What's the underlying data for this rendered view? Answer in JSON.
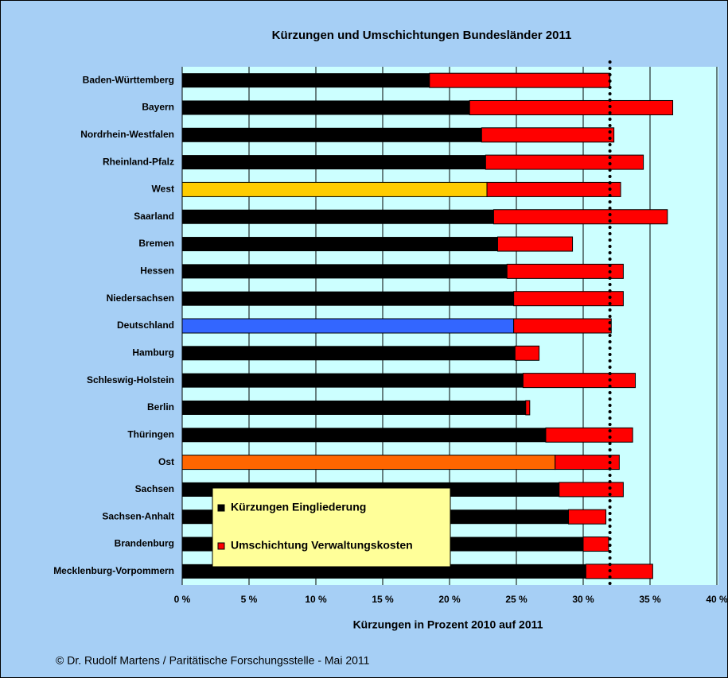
{
  "chart_data": {
    "type": "stacked_barh",
    "title": "Kürzungen und Umschichtungen Bundesländer 2011",
    "xlabel": "Kürzungen in Prozent 2010 auf 2011",
    "footer": "© Dr. Rudolf Martens / Paritätische Forschungsstelle - Mai 2011",
    "categories": [
      "Baden-Württemberg",
      "Bayern",
      "Nordrhein-Westfalen",
      "Rheinland-Pfalz",
      "West",
      "Saarland",
      "Bremen",
      "Hessen",
      "Niedersachsen",
      "Deutschland",
      "Hamburg",
      "Schleswig-Holstein",
      "Berlin",
      "Thüringen",
      "Ost",
      "Sachsen",
      "Sachsen-Anhalt",
      "Brandenburg",
      "Mecklenburg-Vorpommern"
    ],
    "series": [
      {
        "name": "Kürzungen Eingliederung",
        "color": "#000000",
        "colors": [
          "#000000",
          "#000000",
          "#000000",
          "#000000",
          "#ffcc00",
          "#000000",
          "#000000",
          "#000000",
          "#000000",
          "#3366ff",
          "#000000",
          "#000000",
          "#000000",
          "#000000",
          "#ff6600",
          "#000000",
          "#000000",
          "#000000",
          "#000000"
        ],
        "values": [
          18.5,
          21.5,
          22.4,
          22.7,
          22.8,
          23.3,
          23.6,
          24.3,
          24.8,
          24.8,
          24.9,
          25.5,
          25.7,
          27.2,
          27.9,
          28.2,
          28.9,
          30.0,
          30.2
        ]
      },
      {
        "name": "Umschichtung Verwaltungskosten",
        "color": "#ff0000",
        "values": [
          13.5,
          15.2,
          9.9,
          11.8,
          10.0,
          13.0,
          5.6,
          8.7,
          8.2,
          7.3,
          1.8,
          8.4,
          0.3,
          6.5,
          4.8,
          4.8,
          2.8,
          1.9,
          5.0
        ]
      }
    ],
    "reference_line": 32,
    "xlim": [
      0,
      40
    ],
    "xticks": [
      {
        "value": 0,
        "label": "0 %"
      },
      {
        "value": 5,
        "label": "5 %"
      },
      {
        "value": 10,
        "label": "10 %"
      },
      {
        "value": 15,
        "label": "15 %"
      },
      {
        "value": 20,
        "label": "20 %"
      },
      {
        "value": 25,
        "label": "25 %"
      },
      {
        "value": 30,
        "label": "30 %"
      },
      {
        "value": 35,
        "label": "35 %"
      },
      {
        "value": 40,
        "label": "40 %"
      }
    ],
    "grid": true
  }
}
